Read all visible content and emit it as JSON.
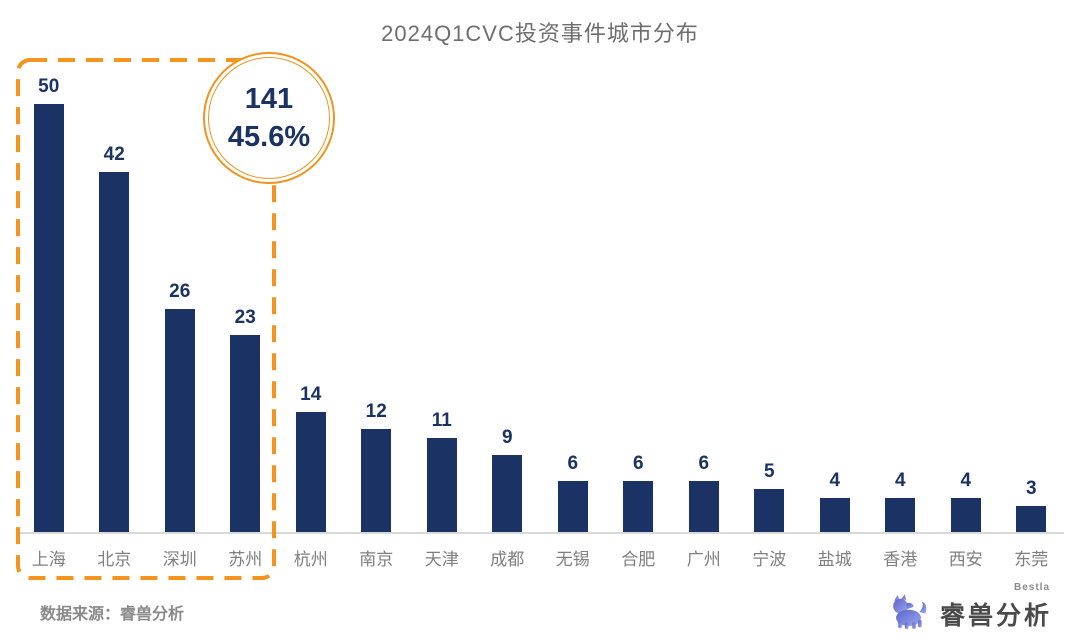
{
  "title": "2024Q1CVC投资事件城市分布",
  "chart_data": {
    "type": "bar",
    "title": "2024Q1CVC投资事件城市分布",
    "categories": [
      "上海",
      "北京",
      "深圳",
      "苏州",
      "杭州",
      "南京",
      "天津",
      "成都",
      "无锡",
      "合肥",
      "广州",
      "宁波",
      "盐城",
      "香港",
      "西安",
      "东莞"
    ],
    "values": [
      50,
      42,
      26,
      23,
      14,
      12,
      11,
      9,
      6,
      6,
      6,
      5,
      4,
      4,
      4,
      3
    ],
    "xlabel": "",
    "ylabel": "",
    "ylim": [
      0,
      50
    ],
    "grid": false,
    "legend": false,
    "bar_color": "#1b3264",
    "value_labels_shown": true,
    "highlight": {
      "grouped_categories": [
        "上海",
        "北京",
        "深圳",
        "苏州"
      ],
      "group_total": "141",
      "group_share": "45.6%",
      "box_color": "#f5931f",
      "box_style": "dashed"
    }
  },
  "badge": {
    "total": "141",
    "share": "45.6%"
  },
  "source": {
    "label": "数据来源：睿兽分析"
  },
  "brand": {
    "icon": "beast-icon",
    "name": "睿兽分析",
    "sub": "Bestla"
  },
  "colors": {
    "bar": "#1b3264",
    "accent_orange": "#f5931f",
    "title_gray": "#6e6e6e",
    "label_gray": "#7f7f7f",
    "axis_line": "#d9d9d9",
    "brand_purple_dark": "#5b63c9",
    "brand_purple_light": "#9aa6ef"
  }
}
